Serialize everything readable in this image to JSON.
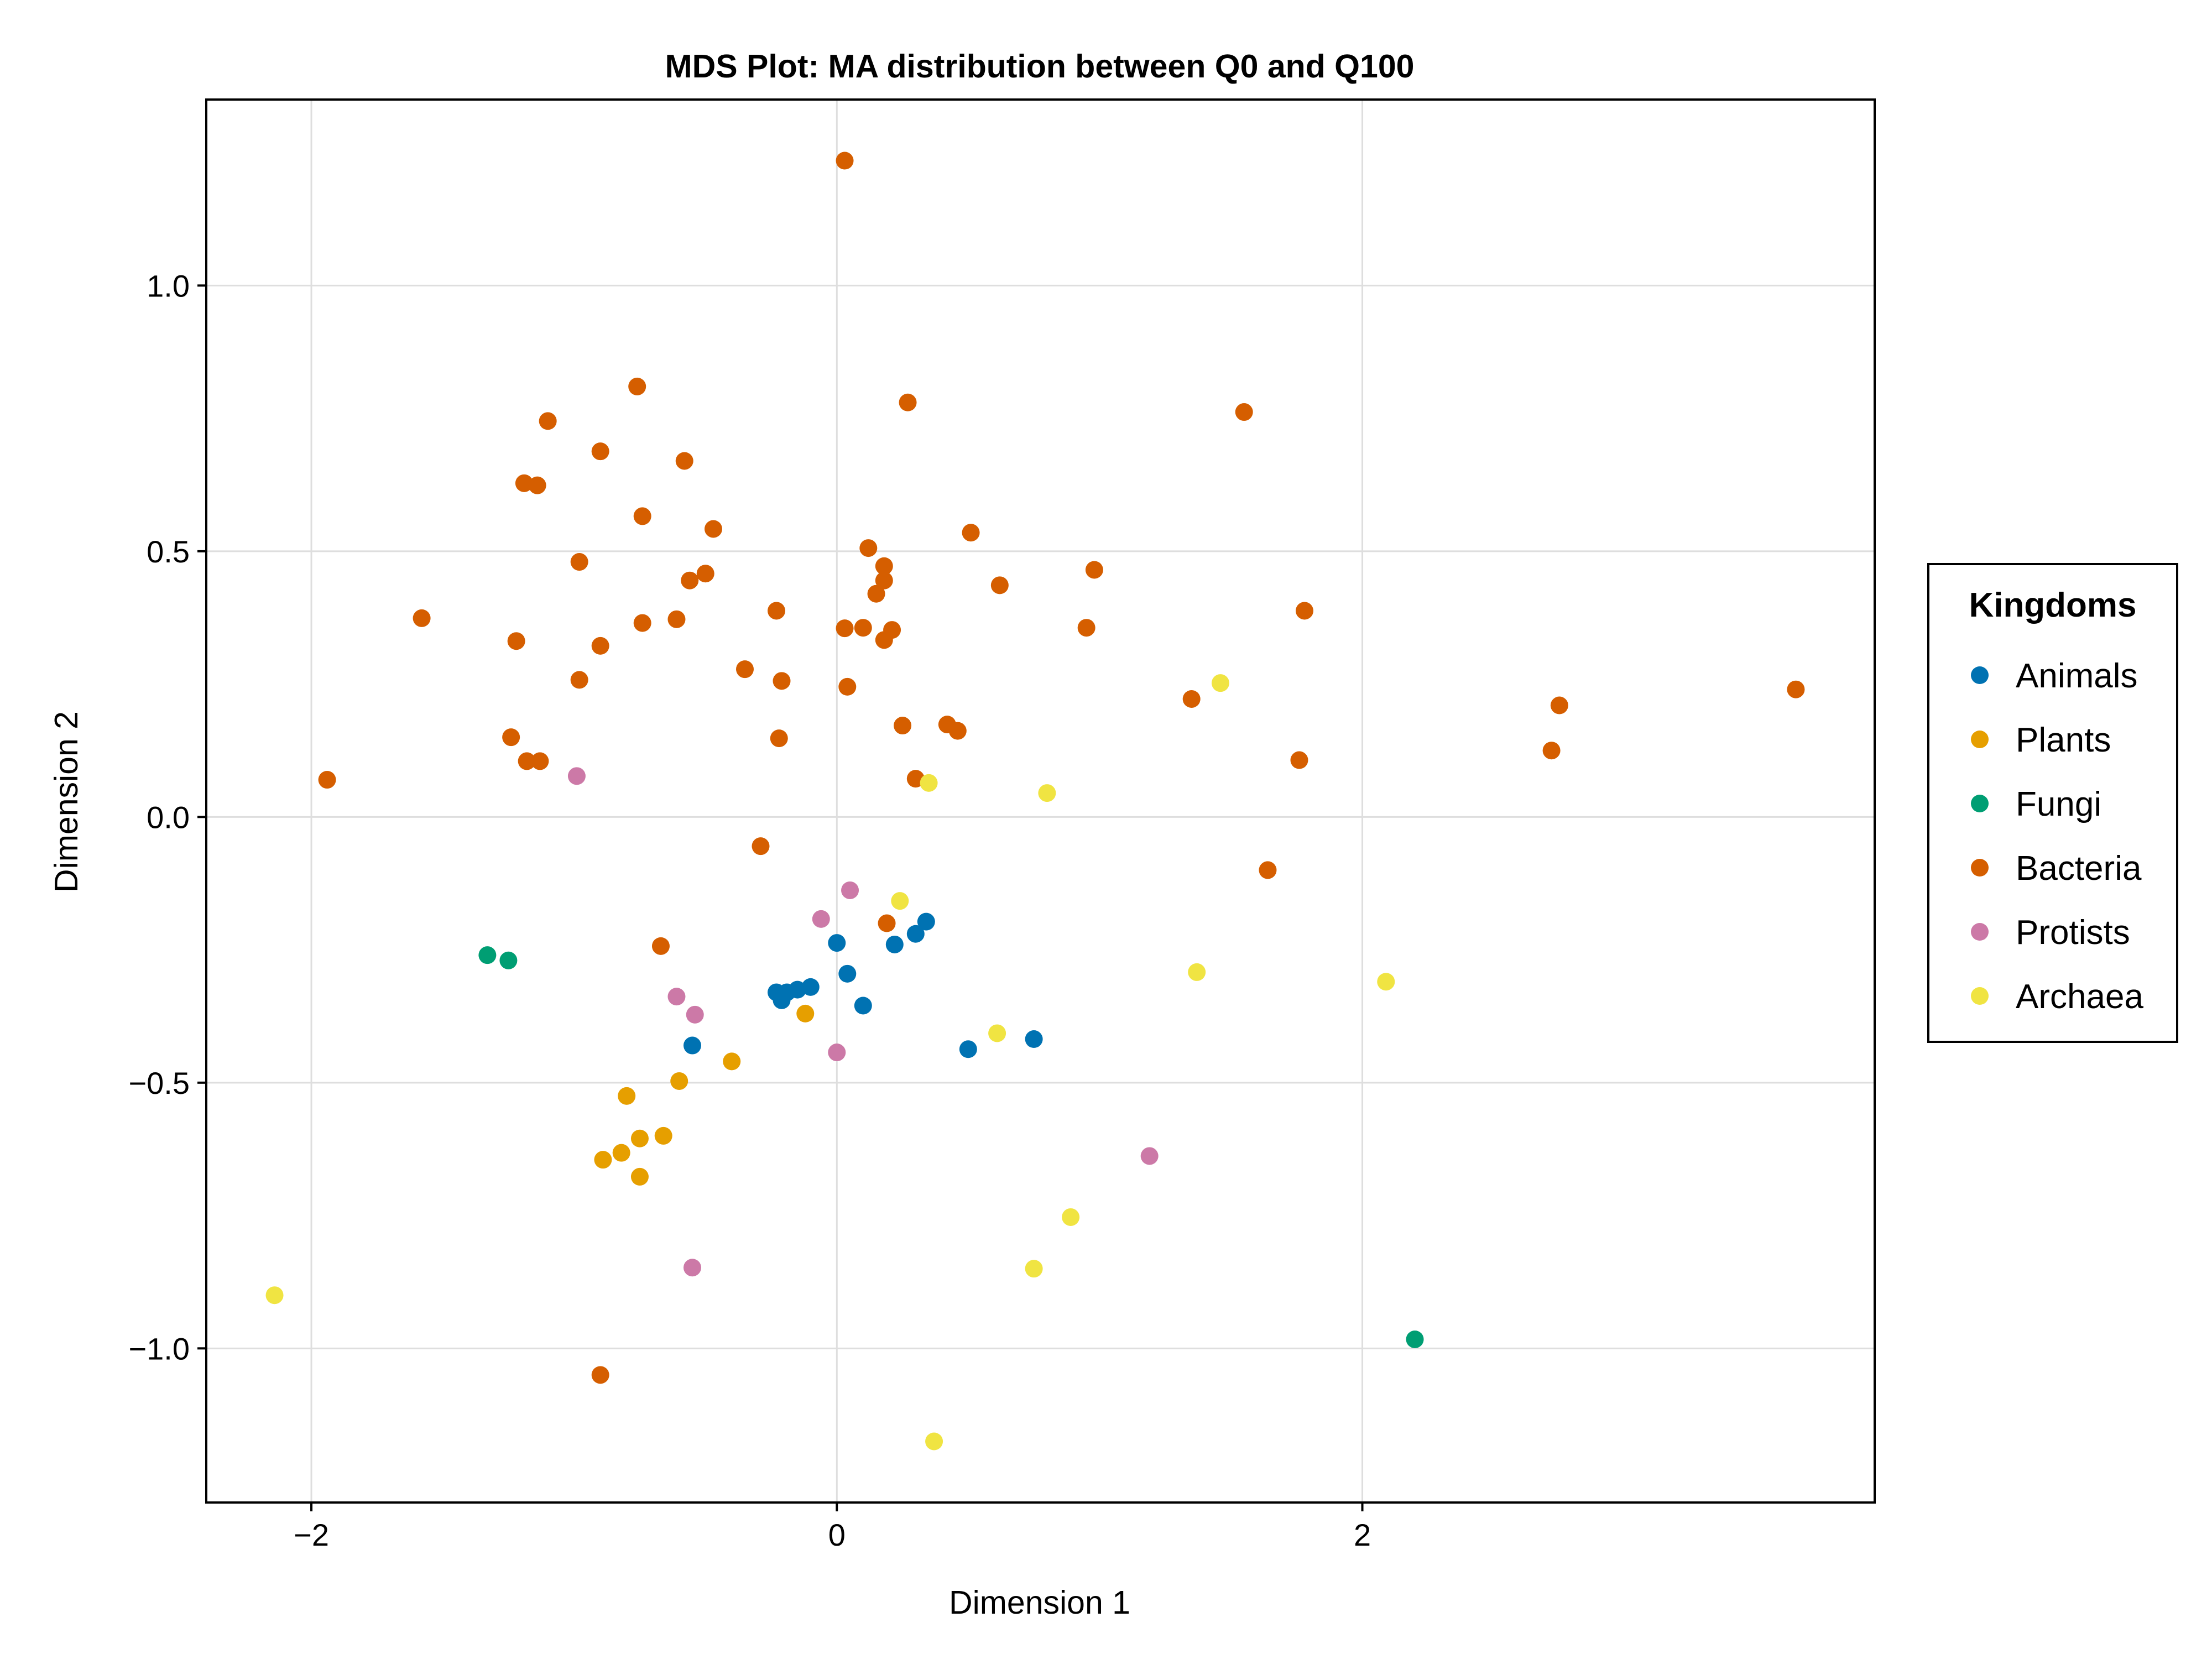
{
  "chart_data": {
    "type": "scatter",
    "title": "MDS Plot: MA distribution between Q0 and Q100",
    "xlabel": "Dimension 1",
    "ylabel": "Dimension 2",
    "xlim": [
      -2.4,
      3.95
    ],
    "ylim": [
      -1.29,
      1.35
    ],
    "x_ticks": [
      {
        "value": -2,
        "label": "−2"
      },
      {
        "value": 0,
        "label": "0"
      },
      {
        "value": 2,
        "label": "2"
      }
    ],
    "y_ticks": [
      {
        "value": -1.0,
        "label": "−1.0"
      },
      {
        "value": -0.5,
        "label": "−0.5"
      },
      {
        "value": 0.0,
        "label": "0.0"
      },
      {
        "value": 0.5,
        "label": "0.5"
      },
      {
        "value": 1.0,
        "label": "1.0"
      }
    ],
    "grid": true,
    "legend": {
      "title": "Kingdoms",
      "position": "right"
    },
    "series": [
      {
        "name": "Animals",
        "color": "#0072B2",
        "points": [
          [
            -0.23,
            -0.33
          ],
          [
            -0.21,
            -0.345
          ],
          [
            -0.19,
            -0.33
          ],
          [
            -0.15,
            -0.325
          ],
          [
            -0.1,
            -0.32
          ],
          [
            0.0,
            -0.237
          ],
          [
            0.04,
            -0.295
          ],
          [
            0.1,
            -0.355
          ],
          [
            0.22,
            -0.24
          ],
          [
            0.3,
            -0.22
          ],
          [
            0.34,
            -0.197
          ],
          [
            -0.55,
            -0.43
          ],
          [
            0.5,
            -0.437
          ],
          [
            0.75,
            -0.418
          ]
        ]
      },
      {
        "name": "Plants",
        "color": "#E69F00",
        "points": [
          [
            -0.12,
            -0.37
          ],
          [
            -0.4,
            -0.46
          ],
          [
            -0.6,
            -0.497
          ],
          [
            -0.8,
            -0.525
          ],
          [
            -0.75,
            -0.605
          ],
          [
            -0.66,
            -0.6
          ],
          [
            -0.82,
            -0.632
          ],
          [
            -0.89,
            -0.645
          ],
          [
            -0.75,
            -0.677
          ]
        ]
      },
      {
        "name": "Fungi",
        "color": "#009E73",
        "points": [
          [
            -1.33,
            -0.26
          ],
          [
            -1.25,
            -0.27
          ],
          [
            2.2,
            -0.983
          ]
        ]
      },
      {
        "name": "Bacteria",
        "color": "#D55E00",
        "points": [
          [
            0.03,
            1.235
          ],
          [
            -0.76,
            0.81
          ],
          [
            0.27,
            0.78
          ],
          [
            1.55,
            0.762
          ],
          [
            -1.1,
            0.745
          ],
          [
            -0.9,
            0.688
          ],
          [
            -0.58,
            0.67
          ],
          [
            -1.19,
            0.628
          ],
          [
            -1.14,
            0.624
          ],
          [
            -0.74,
            0.566
          ],
          [
            -0.47,
            0.542
          ],
          [
            0.51,
            0.535
          ],
          [
            0.12,
            0.506
          ],
          [
            -0.98,
            0.48
          ],
          [
            0.18,
            0.472
          ],
          [
            0.98,
            0.465
          ],
          [
            -0.5,
            0.458
          ],
          [
            -0.56,
            0.445
          ],
          [
            0.18,
            0.445
          ],
          [
            0.62,
            0.436
          ],
          [
            0.15,
            0.42
          ],
          [
            1.78,
            0.388
          ],
          [
            -0.23,
            0.388
          ],
          [
            -1.58,
            0.374
          ],
          [
            -0.61,
            0.372
          ],
          [
            -0.74,
            0.365
          ],
          [
            0.03,
            0.355
          ],
          [
            0.1,
            0.356
          ],
          [
            0.21,
            0.352
          ],
          [
            0.95,
            0.356
          ],
          [
            0.18,
            0.333
          ],
          [
            -1.22,
            0.331
          ],
          [
            -0.9,
            0.322
          ],
          [
            -0.35,
            0.278
          ],
          [
            -0.98,
            0.258
          ],
          [
            -0.21,
            0.256
          ],
          [
            0.04,
            0.245
          ],
          [
            3.65,
            0.24
          ],
          [
            1.35,
            0.222
          ],
          [
            2.75,
            0.21
          ],
          [
            0.25,
            0.172
          ],
          [
            0.42,
            0.174
          ],
          [
            0.46,
            0.162
          ],
          [
            -1.24,
            0.15
          ],
          [
            -0.22,
            0.148
          ],
          [
            2.72,
            0.125
          ],
          [
            -1.18,
            0.105
          ],
          [
            -1.13,
            0.105
          ],
          [
            1.76,
            0.107
          ],
          [
            -1.94,
            0.07
          ],
          [
            0.3,
            0.072
          ],
          [
            -0.29,
            -0.055
          ],
          [
            1.64,
            -0.1
          ],
          [
            0.19,
            -0.2
          ],
          [
            -0.67,
            -0.243
          ],
          [
            -0.9,
            -1.05
          ]
        ]
      },
      {
        "name": "Protists",
        "color": "#CC79A7",
        "points": [
          [
            -0.99,
            0.077
          ],
          [
            0.05,
            -0.138
          ],
          [
            -0.06,
            -0.192
          ],
          [
            -0.61,
            -0.338
          ],
          [
            -0.54,
            -0.372
          ],
          [
            0.0,
            -0.443
          ],
          [
            1.19,
            -0.638
          ],
          [
            -0.55,
            -0.848
          ]
        ]
      },
      {
        "name": "Archaea",
        "color": "#F0E442",
        "points": [
          [
            1.46,
            0.252
          ],
          [
            0.35,
            0.064
          ],
          [
            0.8,
            0.045
          ],
          [
            0.24,
            -0.158
          ],
          [
            1.37,
            -0.292
          ],
          [
            2.09,
            -0.31
          ],
          [
            0.61,
            -0.407
          ],
          [
            0.89,
            -0.753
          ],
          [
            0.75,
            -0.85
          ],
          [
            -2.14,
            -0.9
          ],
          [
            0.37,
            -1.175
          ]
        ]
      }
    ]
  }
}
